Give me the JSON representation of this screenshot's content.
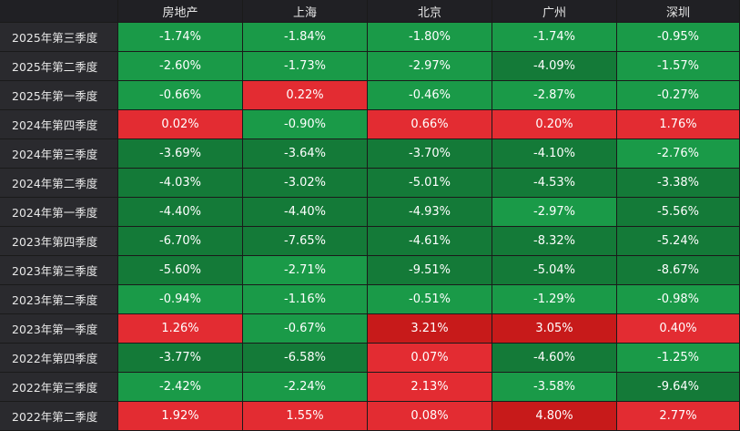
{
  "colors": {
    "pos_light": "#e32c32",
    "pos_dark": "#c71a1a",
    "neg_light": "#1a9a48",
    "neg_dark": "#147a38"
  },
  "headers": [
    "",
    "房地产",
    "上海",
    "北京",
    "广州",
    "深圳"
  ],
  "rows": [
    {
      "label": "2025年第三季度",
      "values": [
        "-1.74%",
        "-1.84%",
        "-1.80%",
        "-1.74%",
        "-0.95%"
      ],
      "shade": [
        "l",
        "l",
        "l",
        "l",
        "l"
      ]
    },
    {
      "label": "2025年第二季度",
      "values": [
        "-2.60%",
        "-1.73%",
        "-2.97%",
        "-4.09%",
        "-1.57%"
      ],
      "shade": [
        "l",
        "l",
        "l",
        "d",
        "l"
      ]
    },
    {
      "label": "2025年第一季度",
      "values": [
        "-0.66%",
        "0.22%",
        "-0.46%",
        "-2.87%",
        "-0.27%"
      ],
      "shade": [
        "l",
        "l",
        "l",
        "l",
        "l"
      ]
    },
    {
      "label": "2024年第四季度",
      "values": [
        "0.02%",
        "-0.90%",
        "0.66%",
        "0.20%",
        "1.76%"
      ],
      "shade": [
        "l",
        "l",
        "l",
        "l",
        "l"
      ]
    },
    {
      "label": "2024年第三季度",
      "values": [
        "-3.69%",
        "-3.64%",
        "-3.70%",
        "-4.10%",
        "-2.76%"
      ],
      "shade": [
        "d",
        "d",
        "d",
        "d",
        "l"
      ]
    },
    {
      "label": "2024年第二季度",
      "values": [
        "-4.03%",
        "-3.02%",
        "-5.01%",
        "-4.53%",
        "-3.38%"
      ],
      "shade": [
        "d",
        "d",
        "d",
        "d",
        "d"
      ]
    },
    {
      "label": "2024年第一季度",
      "values": [
        "-4.40%",
        "-4.40%",
        "-4.93%",
        "-2.97%",
        "-5.56%"
      ],
      "shade": [
        "d",
        "d",
        "d",
        "l",
        "d"
      ]
    },
    {
      "label": "2023年第四季度",
      "values": [
        "-6.70%",
        "-7.65%",
        "-4.61%",
        "-8.32%",
        "-5.24%"
      ],
      "shade": [
        "d",
        "d",
        "d",
        "d",
        "d"
      ]
    },
    {
      "label": "2023年第三季度",
      "values": [
        "-5.60%",
        "-2.71%",
        "-9.51%",
        "-5.04%",
        "-8.67%"
      ],
      "shade": [
        "d",
        "l",
        "d",
        "d",
        "d"
      ]
    },
    {
      "label": "2023年第二季度",
      "values": [
        "-0.94%",
        "-1.16%",
        "-0.51%",
        "-1.29%",
        "-0.98%"
      ],
      "shade": [
        "l",
        "l",
        "l",
        "l",
        "l"
      ]
    },
    {
      "label": "2023年第一季度",
      "values": [
        "1.26%",
        "-0.67%",
        "3.21%",
        "3.05%",
        "0.40%"
      ],
      "shade": [
        "l",
        "l",
        "d",
        "d",
        "l"
      ]
    },
    {
      "label": "2022年第四季度",
      "values": [
        "-3.77%",
        "-6.58%",
        "0.07%",
        "-4.60%",
        "-1.25%"
      ],
      "shade": [
        "d",
        "d",
        "l",
        "d",
        "l"
      ]
    },
    {
      "label": "2022年第三季度",
      "values": [
        "-2.42%",
        "-2.24%",
        "2.13%",
        "-3.58%",
        "-9.64%"
      ],
      "shade": [
        "l",
        "l",
        "l",
        "l",
        "d"
      ]
    },
    {
      "label": "2022年第二季度",
      "values": [
        "1.92%",
        "1.55%",
        "0.08%",
        "4.80%",
        "2.77%"
      ],
      "shade": [
        "l",
        "l",
        "l",
        "d",
        "l"
      ]
    }
  ]
}
